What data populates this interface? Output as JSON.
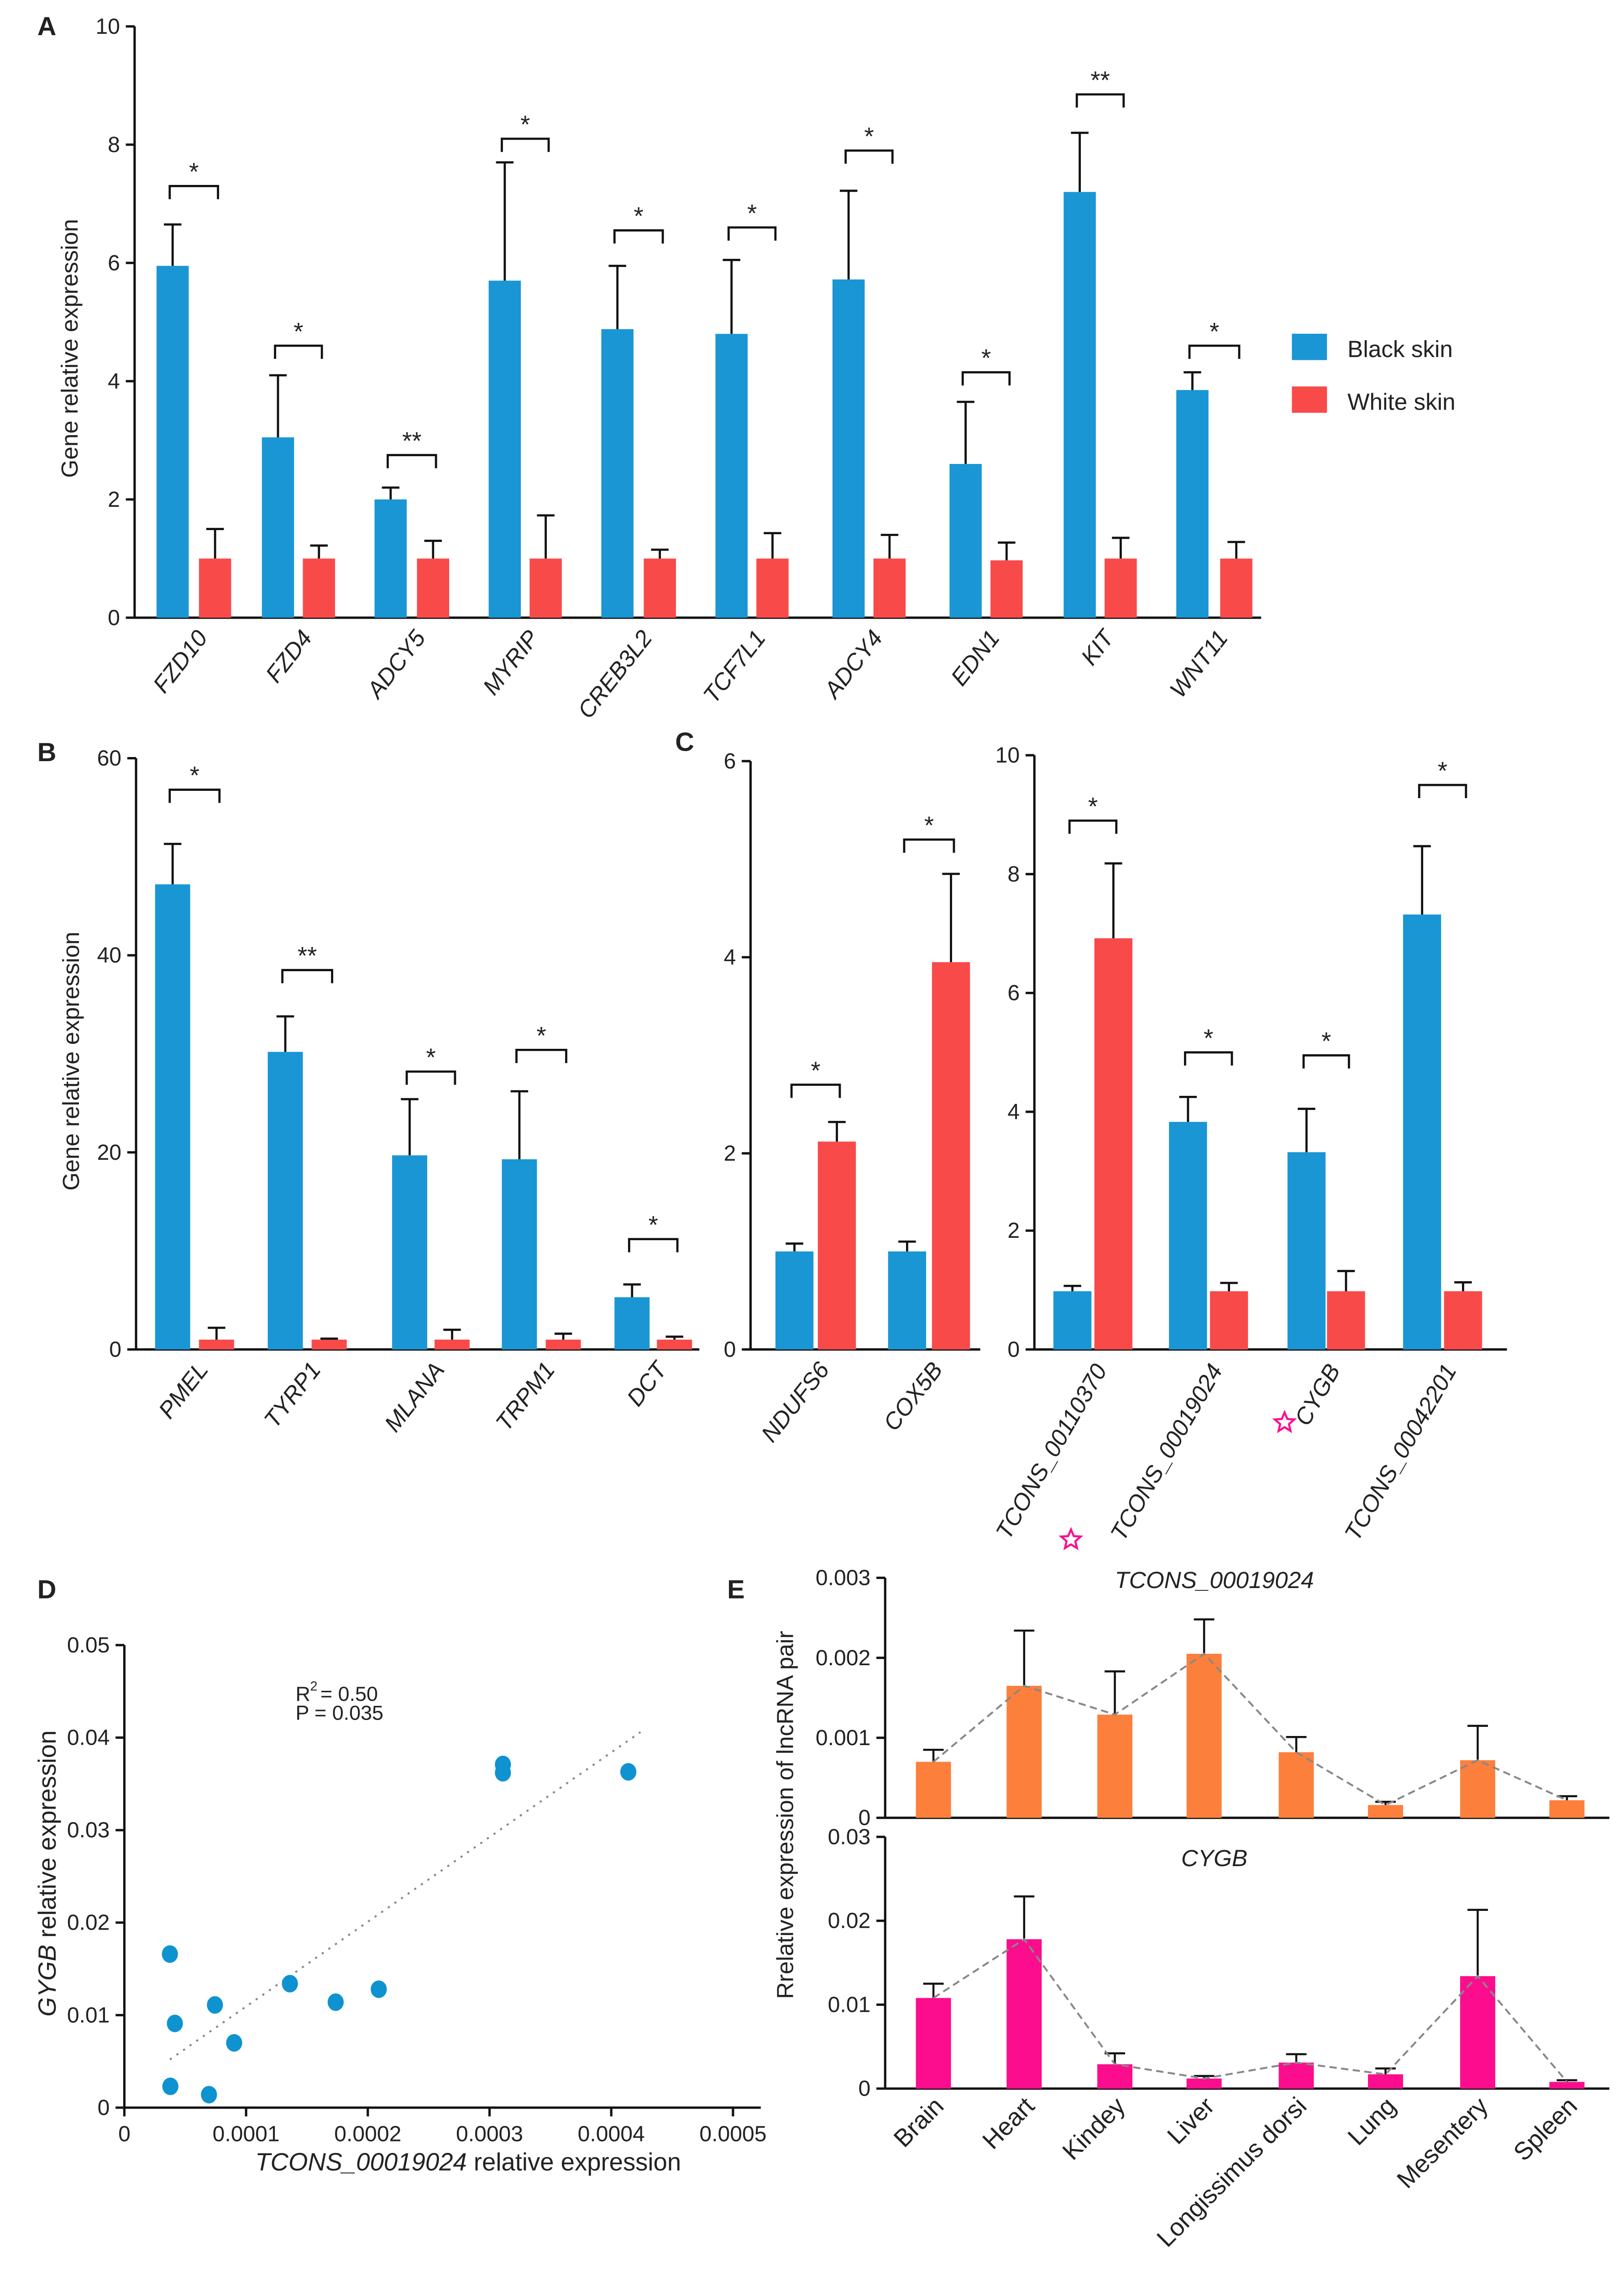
{
  "colors": {
    "black_skin": "#1a96d4",
    "white_skin": "#f94a4a",
    "lncrna": "#fd7f3c",
    "cygb": "#fb0d8e",
    "scatter": "#0e93d0",
    "trend": "#888888",
    "marker_star": "#fb0d8e"
  },
  "chart_data": [
    {
      "panel": "A",
      "type": "bar",
      "ylabel": "Gene relative expression",
      "ylim": [
        0,
        10
      ],
      "yticks": [
        "0",
        "2",
        "4",
        "6",
        "8",
        "10"
      ],
      "categories": [
        "FZD10",
        "FZD4",
        "ADCY5",
        "MYRIP",
        "CREB3L2",
        "TCF7L1",
        "ADCY4",
        "EDN1",
        "KIT",
        "WNT11"
      ],
      "series": [
        {
          "name": "Black skin",
          "values": [
            5.95,
            3.05,
            2.0,
            5.7,
            4.88,
            4.8,
            5.72,
            2.6,
            7.2,
            3.85
          ],
          "error_top": [
            6.65,
            4.1,
            2.2,
            7.7,
            5.95,
            6.05,
            7.22,
            3.65,
            8.2,
            4.15
          ]
        },
        {
          "name": "White skin",
          "values": [
            1,
            1,
            1,
            1,
            1,
            1,
            1,
            0.97,
            1,
            1
          ],
          "error_top": [
            1.5,
            1.22,
            1.3,
            1.73,
            1.15,
            1.43,
            1.4,
            1.27,
            1.35,
            1.28
          ]
        }
      ],
      "significance": [
        "*",
        "*",
        "**",
        "*",
        "*",
        "*",
        "*",
        "*",
        "**",
        "*"
      ],
      "bracket_level": [
        7.3,
        4.6,
        2.75,
        8.1,
        6.55,
        6.6,
        7.9,
        4.15,
        8.85,
        4.6
      ],
      "legend": "right"
    },
    {
      "panel": "B",
      "type": "bar",
      "ylabel": "Gene relative expression",
      "ylim": [
        0,
        60
      ],
      "yticks": [
        "0",
        "20",
        "40",
        "60"
      ],
      "categories": [
        "PMEL",
        "TYRP1",
        "MLANA",
        "TRPM1",
        "DCT"
      ],
      "series": [
        {
          "values": [
            47.2,
            30.2,
            19.7,
            19.3,
            5.3
          ],
          "error_top": [
            51.3,
            33.8,
            25.4,
            26.2,
            6.6
          ]
        },
        {
          "values": [
            1,
            1,
            1,
            1,
            1
          ],
          "error_top": [
            2.2,
            1.1,
            2.0,
            1.6,
            1.3
          ]
        }
      ],
      "significance": [
        "*",
        "**",
        "*",
        "*",
        "*"
      ],
      "bracket_level": [
        56.8,
        38.5,
        28.2,
        30.4,
        11.2
      ]
    },
    {
      "panel": "C",
      "type": "bar",
      "ylim": [
        0,
        6
      ],
      "yticks": [
        "0",
        "2",
        "4",
        "6"
      ],
      "categories": [
        "NDUFS6",
        "COX5B"
      ],
      "series": [
        {
          "values": [
            1,
            1
          ],
          "error_top": [
            1.08,
            1.1
          ]
        },
        {
          "values": [
            2.12,
            3.95
          ],
          "error_top": [
            2.32,
            4.85
          ]
        }
      ],
      "significance": [
        "*",
        "*"
      ],
      "bracket_level": [
        2.7,
        5.2
      ]
    },
    {
      "panel": "C2",
      "type": "bar",
      "ylim": [
        0,
        10
      ],
      "yticks": [
        "0",
        "2",
        "4",
        "6",
        "8",
        "10"
      ],
      "categories": [
        "TCONS_00110370",
        "TCONS_00019024",
        "CYGB",
        "TCONS_00042201"
      ],
      "starred": [
        false,
        true,
        true,
        false
      ],
      "series": [
        {
          "values": [
            0.98,
            3.83,
            3.32,
            7.32
          ],
          "error_top": [
            1.07,
            4.25,
            4.05,
            8.47
          ]
        },
        {
          "values": [
            6.92,
            0.98,
            0.98,
            0.98
          ],
          "error_top": [
            8.18,
            1.12,
            1.32,
            1.13
          ]
        }
      ],
      "significance": [
        "*",
        "*",
        "*",
        "*"
      ],
      "bracket_level": [
        8.9,
        5.0,
        4.95,
        9.5
      ]
    },
    {
      "panel": "D",
      "type": "scatter",
      "xlabel_italic": "TCONS_00019024",
      "xlabel_rest": " relative expression",
      "ylabel_italic": "GYGB",
      "ylabel_rest": " relative expression",
      "xlim": [
        0,
        0.0005
      ],
      "ylim": [
        0,
        0.05
      ],
      "xticks": [
        "0",
        "0.0001",
        "0.0002",
        "0.0003",
        "0.0004",
        "0.0005"
      ],
      "yticks": [
        "0",
        "0.01",
        "0.02",
        "0.03",
        "0.04",
        "0.05"
      ],
      "points": [
        [
          3.74e-05,
          0.0166
        ],
        [
          4.15e-05,
          0.0091
        ],
        [
          7.44e-05,
          0.0111
        ],
        [
          9.02e-05,
          0.007
        ],
        [
          0.000136,
          0.0134
        ],
        [
          0.0001736,
          0.0114
        ],
        [
          0.000209,
          0.0128
        ],
        [
          0.000311,
          0.0371
        ],
        [
          0.000311,
          0.0362
        ],
        [
          0.000414,
          0.0363
        ],
        [
          3.78e-05,
          0.0023
        ],
        [
          6.95e-05,
          0.0014
        ]
      ],
      "trendline": [
        [
          3.74e-05,
          0.0052
        ],
        [
          0.000424,
          0.0406
        ]
      ],
      "annotation_r2": "R",
      "annotation_r2_sup": "2",
      "annotation_r2_value": "= 0.50",
      "annotation_p": "P = 0.035"
    },
    {
      "panel": "E",
      "type": "bar",
      "ylabel": "Rrelative expression of lncRNA pair",
      "categories": [
        "Brain",
        "Heart",
        "Kindey",
        "Liver",
        "Longissimus dorsi",
        "Lung",
        "Mesentery",
        "Spleen"
      ],
      "subplots": [
        {
          "title": "TCONS_00019024",
          "ylim": [
            0,
            0.003
          ],
          "yticks": [
            "0",
            "0.001",
            "0.002",
            "0.003"
          ],
          "values": [
            0.0007,
            0.00165,
            0.00129,
            0.00205,
            0.00082,
            0.00016,
            0.00072,
            0.00022
          ],
          "error_top": [
            0.00085,
            0.00234,
            0.00183,
            0.00248,
            0.00101,
            0.0002,
            0.00115,
            0.00027
          ]
        },
        {
          "title": "CYGB",
          "ylim": [
            0,
            0.03
          ],
          "yticks": [
            "0",
            "0.01",
            "0.02",
            "0.03"
          ],
          "values": [
            0.0108,
            0.0178,
            0.0029,
            0.0012,
            0.0031,
            0.0017,
            0.0134,
            0.0008
          ],
          "error_top": [
            0.0125,
            0.0229,
            0.0042,
            0.0015,
            0.0041,
            0.0024,
            0.0213,
            0.001
          ]
        }
      ]
    }
  ],
  "legend": {
    "items": [
      "Black skin",
      "White skin"
    ]
  }
}
